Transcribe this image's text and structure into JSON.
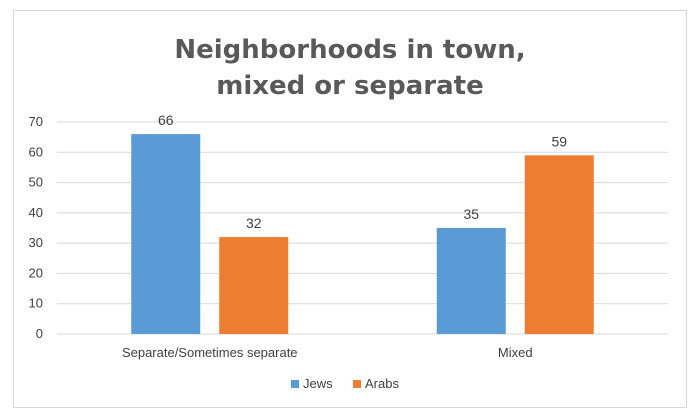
{
  "chart_data": {
    "type": "bar",
    "title_line1": "Neighborhoods in town,",
    "title_line2": "mixed or separate",
    "categories": [
      "Separate/Sometimes separate",
      "Mixed"
    ],
    "series": [
      {
        "name": "Jews",
        "values": [
          66,
          35
        ],
        "color": "#5b9bd5"
      },
      {
        "name": "Arabs",
        "values": [
          32,
          59
        ],
        "color": "#ed7d31"
      }
    ],
    "ylim": [
      0,
      70
    ],
    "yticks": [
      0,
      10,
      20,
      30,
      40,
      50,
      60,
      70
    ],
    "grid": true,
    "legend_position": "bottom",
    "data_labels": true
  }
}
